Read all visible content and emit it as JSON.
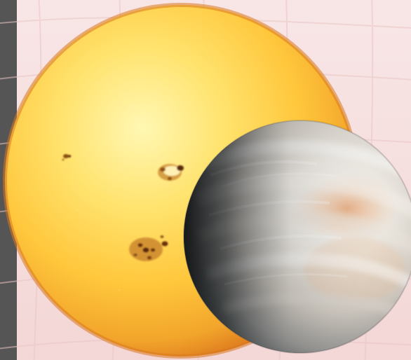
{
  "scene": {
    "background_color": "#f6dcdc",
    "grid_color": "#eac5c5",
    "side_bar_color": "#555555",
    "sun": {
      "name": "sun",
      "colors": [
        "#fff3a3",
        "#ffd24a",
        "#f7b12d",
        "#ea8a1f",
        "#d66a19"
      ],
      "features": [
        "sunspot-group",
        "sunspot-group",
        "sunspot-group"
      ]
    },
    "venus": {
      "name": "venus",
      "colors": [
        "#f4f3ef",
        "#d9d5cf",
        "#b0a9a0",
        "#6f7170",
        "#1e1f20"
      ],
      "tint_color": "#e79e66"
    }
  }
}
